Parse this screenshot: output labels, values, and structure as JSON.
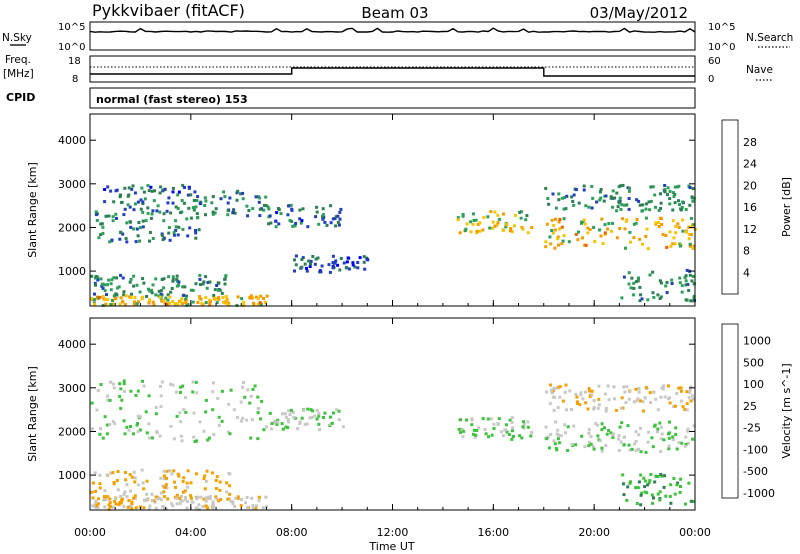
{
  "header": {
    "title": "Pykkvibaer (fitACF)",
    "beam": "Beam 03",
    "date": "03/May/2012"
  },
  "strip_panels": {
    "nsky": {
      "label": "N.Sky",
      "tick_top": "10^5",
      "tick_bottom": "10^0"
    },
    "nsearch": {
      "label": "N.Search",
      "tick_top": "10^5",
      "tick_bottom": "10^0"
    },
    "freq": {
      "label_line1": "Freq.",
      "label_line2": "[MHz]",
      "tick_top": "18",
      "tick_bottom": "8"
    },
    "nave": {
      "label": "Nave",
      "tick_top": "60",
      "tick_bottom": "0"
    },
    "cpid": {
      "label": "CPID",
      "text": "normal (fast stereo) 153"
    }
  },
  "colors": {
    "power_scale": [
      "#0000ff",
      "#1f3fbf",
      "#2c7f52",
      "#2ca05a",
      "#f6c400",
      "#f69a00",
      "#f06000",
      "#e00000"
    ],
    "velocity_scale": [
      "#0000ff",
      "#1f3fbf",
      "#2c7f52",
      "#3cc23c",
      "#c8c8c4",
      "#f6a000",
      "#f07000",
      "#e00000"
    ]
  },
  "chart_data": [
    {
      "type": "heatmap",
      "panel": "power",
      "ylabel": "Slant Range [km]",
      "xlabel": "",
      "xticks": [
        "00:00",
        "04:00",
        "08:00",
        "12:00",
        "16:00",
        "20:00",
        "00:00"
      ],
      "yticks": [
        "1000",
        "2000",
        "3000",
        "4000"
      ],
      "ylim": [
        200,
        4600
      ],
      "colorbar": {
        "label": "Power [dB]",
        "ticks": [
          "4",
          "8",
          "12",
          "16",
          "20",
          "24",
          "28"
        ],
        "range": [
          0,
          30
        ]
      },
      "scatter_regions": [
        {
          "t_start": 0.0,
          "t_end": 4.3,
          "r_center": 2050,
          "r_width": 350,
          "value": 10
        },
        {
          "t_start": 0.5,
          "t_end": 4.0,
          "r_center": 2700,
          "r_width": 300,
          "value": 8
        },
        {
          "t_start": 4.0,
          "t_end": 7.0,
          "r_center": 2600,
          "r_width": 300,
          "value": 10
        },
        {
          "t_start": 0.0,
          "t_end": 5.5,
          "r_center": 700,
          "r_width": 250,
          "value": 10
        },
        {
          "t_start": 0.0,
          "t_end": 7.0,
          "r_center": 350,
          "r_width": 120,
          "value": 18
        },
        {
          "t_start": 7.0,
          "t_end": 10.0,
          "r_center": 2300,
          "r_width": 250,
          "value": 8
        },
        {
          "t_start": 8.0,
          "t_end": 11.0,
          "r_center": 1200,
          "r_width": 200,
          "value": 6
        },
        {
          "t_start": 14.5,
          "t_end": 17.5,
          "r_center": 2150,
          "r_width": 250,
          "value": 16
        },
        {
          "t_start": 18.0,
          "t_end": 24.0,
          "r_center": 1900,
          "r_width": 350,
          "value": 18
        },
        {
          "t_start": 18.0,
          "t_end": 24.0,
          "r_center": 2700,
          "r_width": 300,
          "value": 10
        },
        {
          "t_start": 21.0,
          "t_end": 24.0,
          "r_center": 700,
          "r_width": 350,
          "value": 10
        }
      ]
    },
    {
      "type": "heatmap",
      "panel": "velocity",
      "ylabel": "Slant Range [km]",
      "xlabel": "Time UT",
      "xticks": [
        "00:00",
        "04:00",
        "08:00",
        "12:00",
        "16:00",
        "20:00",
        "00:00"
      ],
      "yticks": [
        "1000",
        "2000",
        "3000",
        "4000"
      ],
      "ylim": [
        200,
        4600
      ],
      "colorbar": {
        "label": "Velocity [m s^-1]",
        "ticks": [
          "1000",
          "500",
          "100",
          "25",
          "-25",
          "-100",
          "-500",
          "-1000"
        ],
        "range": [
          -1000,
          1000
        ]
      },
      "scatter_regions": [
        {
          "t_start": 0.0,
          "t_end": 7.0,
          "r_center": 2500,
          "r_width": 700,
          "value": 0
        },
        {
          "t_start": 7.0,
          "t_end": 10.0,
          "r_center": 2300,
          "r_width": 250,
          "value": 0
        },
        {
          "t_start": 0.0,
          "t_end": 5.5,
          "r_center": 800,
          "r_width": 350,
          "value": -300
        },
        {
          "t_start": 0.0,
          "t_end": 7.0,
          "r_center": 400,
          "r_width": 150,
          "value": -200
        },
        {
          "t_start": 14.5,
          "t_end": 17.5,
          "r_center": 2100,
          "r_width": 250,
          "value": 50
        },
        {
          "t_start": 18.0,
          "t_end": 24.0,
          "r_center": 1900,
          "r_width": 350,
          "value": 0
        },
        {
          "t_start": 18.0,
          "t_end": 24.0,
          "r_center": 2800,
          "r_width": 300,
          "value": -200
        },
        {
          "t_start": 21.0,
          "t_end": 24.0,
          "r_center": 700,
          "r_width": 350,
          "value": 200
        }
      ]
    }
  ]
}
